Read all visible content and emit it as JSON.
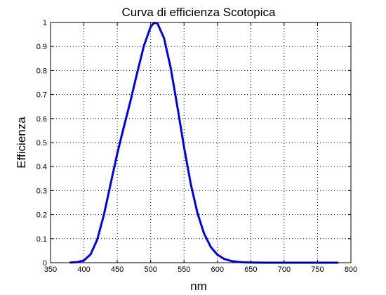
{
  "chart_data": {
    "type": "line",
    "title": "Curva di efficienza Scotopica",
    "xlabel": "nm",
    "ylabel": "Efficienza",
    "xlim": [
      350,
      800
    ],
    "ylim": [
      0,
      1
    ],
    "x_ticks": [
      350,
      400,
      450,
      500,
      550,
      600,
      650,
      700,
      750,
      800
    ],
    "x_tick_labels": [
      "350",
      "400",
      "450",
      "500",
      "550",
      "600",
      "650",
      "700",
      "750",
      "800"
    ],
    "y_ticks": [
      0,
      0.1,
      0.2,
      0.3,
      0.4,
      0.5,
      0.6,
      0.7,
      0.8,
      0.9,
      1
    ],
    "y_tick_labels": [
      "0",
      "0.1",
      "0.2",
      "0.3",
      "0.4",
      "0.5",
      "0.6",
      "0.7",
      "0.8",
      "0.9",
      "1"
    ],
    "grid": true,
    "grid_style": "dotted",
    "series": [
      {
        "color": "#0000ee",
        "x": [
          380,
          390,
          400,
          410,
          420,
          430,
          440,
          450,
          460,
          470,
          480,
          490,
          500,
          505,
          510,
          520,
          530,
          540,
          550,
          560,
          570,
          580,
          590,
          600,
          610,
          620,
          630,
          640,
          650,
          660,
          680,
          700,
          720,
          740,
          760,
          780
        ],
        "y": [
          0.0006,
          0.0022,
          0.0093,
          0.0348,
          0.0966,
          0.1998,
          0.3281,
          0.455,
          0.567,
          0.676,
          0.793,
          0.904,
          0.982,
          0.998,
          0.997,
          0.935,
          0.811,
          0.65,
          0.481,
          0.3288,
          0.2076,
          0.1212,
          0.0655,
          0.0332,
          0.0159,
          0.0074,
          0.0033,
          0.0015,
          0.0007,
          0.0003,
          0.0001,
          2e-05,
          0,
          0,
          0,
          0
        ]
      }
    ]
  }
}
